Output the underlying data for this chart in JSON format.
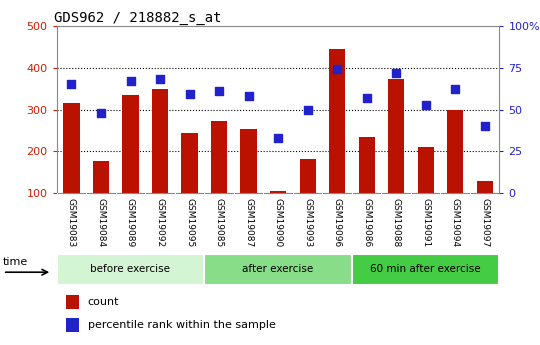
{
  "title": "GDS962 / 218882_s_at",
  "samples": [
    "GSM19083",
    "GSM19084",
    "GSM19089",
    "GSM19092",
    "GSM19095",
    "GSM19085",
    "GSM19087",
    "GSM19090",
    "GSM19093",
    "GSM19096",
    "GSM19086",
    "GSM19088",
    "GSM19091",
    "GSM19094",
    "GSM19097"
  ],
  "counts": [
    315,
    178,
    335,
    350,
    245,
    272,
    253,
    105,
    182,
    445,
    235,
    373,
    210,
    300,
    130
  ],
  "percentiles": [
    65,
    48,
    67,
    68,
    59,
    61,
    58,
    33,
    50,
    74,
    57,
    72,
    53,
    62,
    40
  ],
  "groups": [
    {
      "label": "before exercise",
      "start": 0,
      "end": 5,
      "color": "#d4f5d4"
    },
    {
      "label": "after exercise",
      "start": 5,
      "end": 10,
      "color": "#88dd88"
    },
    {
      "label": "60 min after exercise",
      "start": 10,
      "end": 15,
      "color": "#44cc44"
    }
  ],
  "bar_color": "#bb1100",
  "dot_color": "#2222cc",
  "left_axis_color": "#cc2200",
  "right_axis_color": "#2222cc",
  "ylim_left": [
    100,
    500
  ],
  "ylim_right": [
    0,
    100
  ],
  "yticks_left": [
    100,
    200,
    300,
    400,
    500
  ],
  "yticks_right": [
    0,
    25,
    50,
    75,
    100
  ],
  "grid_levels": [
    200,
    300,
    400
  ],
  "bg_color": "#ffffff",
  "tick_label_bg": "#cccccc",
  "legend_items": [
    "count",
    "percentile rank within the sample"
  ],
  "time_label": "time"
}
